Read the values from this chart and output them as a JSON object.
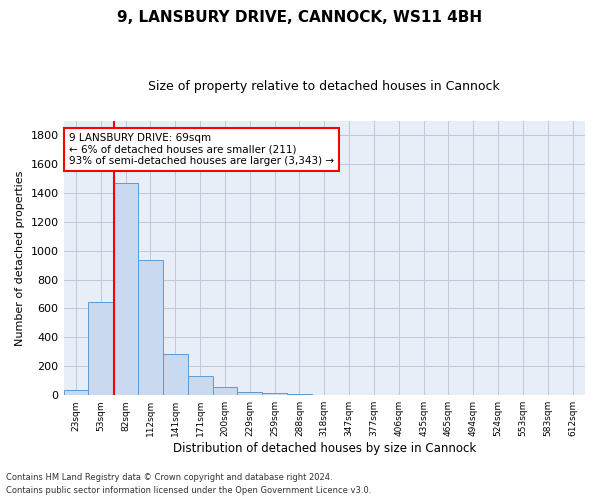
{
  "title1": "9, LANSBURY DRIVE, CANNOCK, WS11 4BH",
  "title2": "Size of property relative to detached houses in Cannock",
  "xlabel": "Distribution of detached houses by size in Cannock",
  "ylabel": "Number of detached properties",
  "bin_labels": [
    "23sqm",
    "53sqm",
    "82sqm",
    "112sqm",
    "141sqm",
    "171sqm",
    "200sqm",
    "229sqm",
    "259sqm",
    "288sqm",
    "318sqm",
    "347sqm",
    "377sqm",
    "406sqm",
    "435sqm",
    "465sqm",
    "494sqm",
    "524sqm",
    "553sqm",
    "583sqm",
    "612sqm"
  ],
  "bar_values": [
    35,
    645,
    1470,
    935,
    285,
    130,
    60,
    25,
    18,
    10,
    0,
    0,
    0,
    0,
    0,
    0,
    0,
    0,
    0,
    0,
    0
  ],
  "bar_color": "#c9d9f0",
  "bar_edge_color": "#5b9bd5",
  "annotation_text": "9 LANSBURY DRIVE: 69sqm\n← 6% of detached houses are smaller (211)\n93% of semi-detached houses are larger (3,343) →",
  "annotation_box_color": "white",
  "annotation_box_edge_color": "red",
  "ylim": [
    0,
    1900
  ],
  "yticks": [
    0,
    200,
    400,
    600,
    800,
    1000,
    1200,
    1400,
    1600,
    1800
  ],
  "grid_color": "#c0c8d8",
  "background_color": "#e8eef8",
  "footer1": "Contains HM Land Registry data © Crown copyright and database right 2024.",
  "footer2": "Contains public sector information licensed under the Open Government Licence v3.0."
}
